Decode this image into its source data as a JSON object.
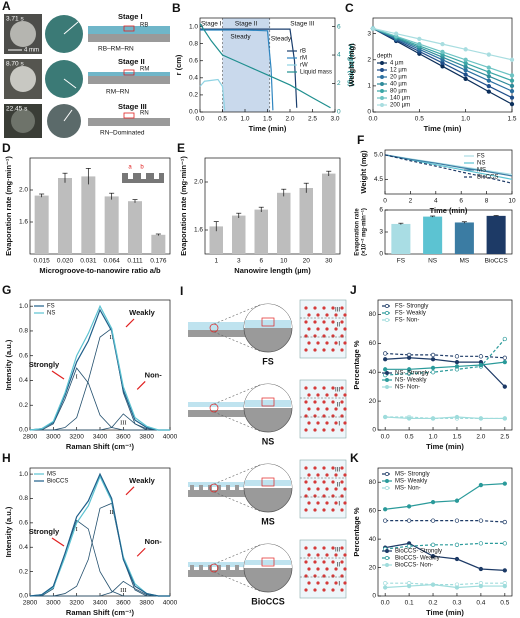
{
  "panel_a": {
    "label": "A",
    "scale": "4 mm",
    "frames": [
      {
        "time": "3.71 s",
        "stage": "Stage I",
        "radius": "RB",
        "regime": "RB–RM–RN"
      },
      {
        "time": "8.70 s",
        "stage": "Stage II",
        "radius": "RM",
        "regime": "RM–RN"
      },
      {
        "time": "22.45 s",
        "stage": "Stage III",
        "radius": "RN",
        "regime": "RN–Dominated"
      }
    ]
  },
  "panel_i": {
    "label": "I",
    "samples": [
      "FS",
      "NS",
      "MS",
      "BioCCS"
    ],
    "layers": [
      "III",
      "II",
      "I"
    ]
  },
  "chart_data": [
    {
      "type": "line",
      "label": "B",
      "xlabel": "Time (min)",
      "ylabel": "r (cm)",
      "y2label": "Weight (mg)",
      "xlim": [
        0,
        3
      ],
      "xticks": [
        {
          "value": 0,
          "label": "0.0"
        },
        0.5,
        {
          "value": 1,
          "label": "1.0"
        },
        1.5,
        {
          "value": 2,
          "label": "2.0"
        },
        2.5,
        {
          "value": 3,
          "label": "3.0"
        }
      ],
      "ylim": [
        0,
        1.1
      ],
      "yticks": [
        {
          "value": 0,
          "label": "0.0"
        },
        0.2,
        0.4,
        0.6,
        0.8,
        {
          "value": 1,
          "label": "1.0"
        }
      ],
      "y2lim": [
        0,
        6.6
      ],
      "y2ticks": [
        0,
        2,
        4,
        6
      ],
      "stages": [
        {
          "label": "Stage I",
          "from": 0,
          "to": 0.5,
          "fill": "#ffffff"
        },
        {
          "label": "Stage II",
          "from": 0.5,
          "to": 1.55,
          "fill": "#c9d9ec"
        },
        {
          "label": "Stage III",
          "from": 1.55,
          "to": 3,
          "fill": "#ffffff"
        }
      ],
      "annotations": [
        "Steady",
        "Steady"
      ],
      "legend": "center right",
      "series": [
        {
          "name": "rB",
          "color": "#1b3f6e",
          "x": [
            0,
            0.5,
            1.0,
            1.5,
            2.0,
            2.1,
            2.15
          ],
          "values": [
            0.97,
            0.97,
            0.97,
            0.97,
            0.97,
            0.6,
            0.05
          ]
        },
        {
          "name": "rM",
          "color": "#2f86c0",
          "x": [
            0,
            0.5,
            1.0,
            1.5,
            1.58,
            1.62
          ],
          "values": [
            0.96,
            0.96,
            0.96,
            0.95,
            0.5,
            0.02
          ]
        },
        {
          "name": "rW",
          "color": "#8fd3e3",
          "x": [
            0,
            0.1,
            0.4,
            0.5,
            0.55
          ],
          "values": [
            0.3,
            0.36,
            0.38,
            0.3,
            0.02
          ]
        },
        {
          "name": "Liquid mass",
          "color": "#1f8f8f",
          "axis": "y2",
          "x": [
            0,
            0.25,
            0.5,
            1.0,
            1.5,
            2.0,
            2.5,
            2.9
          ],
          "values": [
            6.2,
            5.0,
            4.0,
            3.3,
            2.6,
            1.9,
            1.0,
            0.3
          ]
        }
      ]
    },
    {
      "type": "line",
      "label": "C",
      "xlabel": "Time (min)",
      "ylabel": "Weight (mg)",
      "xlim": [
        0,
        1.5
      ],
      "xticks": [
        {
          "value": 0,
          "label": "0.0"
        },
        0.5,
        {
          "value": 1,
          "label": "1.0"
        },
        1.5
      ],
      "ylim": [
        0,
        3.6
      ],
      "yticks": [
        0,
        1,
        2,
        3
      ],
      "legend": "lower left",
      "legend_title": "depth",
      "x": [
        0,
        0.25,
        0.5,
        0.75,
        1.0,
        1.25,
        1.5
      ],
      "series": [
        {
          "name": "4 µm",
          "color": "#0b2e5a",
          "marker": "circle",
          "values": [
            3.2,
            2.72,
            2.23,
            1.75,
            1.27,
            0.78,
            0.3
          ]
        },
        {
          "name": "12 µm",
          "color": "#1f4e8a",
          "marker": "circle",
          "values": [
            3.2,
            2.76,
            2.32,
            1.88,
            1.43,
            0.99,
            0.55
          ]
        },
        {
          "name": "20 µm",
          "color": "#2b6fa0",
          "marker": "circle",
          "values": [
            3.2,
            2.8,
            2.4,
            2.0,
            1.6,
            1.2,
            0.8
          ]
        },
        {
          "name": "40 µm",
          "color": "#2f8a9a",
          "marker": "circle",
          "values": [
            3.2,
            2.83,
            2.47,
            2.1,
            1.73,
            1.37,
            1.0
          ]
        },
        {
          "name": "80 µm",
          "color": "#3ba6a6",
          "marker": "circle",
          "values": [
            3.2,
            2.87,
            2.53,
            2.2,
            1.87,
            1.53,
            1.2
          ]
        },
        {
          "name": "140 µm",
          "color": "#6cc3c3",
          "marker": "circle",
          "values": [
            3.2,
            2.9,
            2.6,
            2.3,
            2.0,
            1.7,
            1.4
          ]
        },
        {
          "name": "200 µm",
          "color": "#a8dde0",
          "marker": "circle",
          "values": [
            3.2,
            3.0,
            2.8,
            2.6,
            2.4,
            2.2,
            2.0
          ]
        }
      ]
    },
    {
      "type": "bar",
      "label": "D",
      "xlabel": "Microgroove-to-nanowire ratio a/b",
      "ylabel": "Evaporation rate (mg·min⁻¹)",
      "categories": [
        "0.015",
        "0.020",
        "0.031",
        "0.064",
        "0.111",
        "0.176"
      ],
      "values": [
        1.93,
        2.15,
        2.17,
        1.92,
        1.86,
        1.44
      ],
      "errors": [
        0.02,
        0.06,
        0.1,
        0.04,
        0.02,
        0.01
      ],
      "color": "#bdbdbd",
      "ylim": [
        1.2,
        2.4
      ],
      "yticks": [
        1.6,
        {
          "value": 2,
          "label": "2.0"
        }
      ],
      "inset_labels": [
        "a",
        "b"
      ]
    },
    {
      "type": "bar",
      "label": "E",
      "xlabel": "Nanowire length (µm)",
      "ylabel": "Evaporation rate (mg·min⁻¹)",
      "categories": [
        "1",
        "3",
        "6",
        "10",
        "20",
        "30"
      ],
      "values": [
        1.63,
        1.72,
        1.77,
        1.91,
        1.95,
        2.07
      ],
      "errors": [
        0.04,
        0.02,
        0.02,
        0.03,
        0.04,
        0.02
      ],
      "color": "#bdbdbd",
      "ylim": [
        1.4,
        2.2
      ],
      "yticks": [
        1.6,
        {
          "value": 2,
          "label": "2.0"
        }
      ]
    },
    {
      "type": "line",
      "label": "F",
      "xlabel": "Time (min)",
      "ylabel": "Weight (mg)",
      "xlim": [
        0,
        10
      ],
      "xticks": [
        0,
        2,
        4,
        6,
        8,
        10
      ],
      "ylim": [
        4.2,
        5.1
      ],
      "yticks": [
        4.5,
        {
          "value": 5,
          "label": "5.0"
        }
      ],
      "legend": "upper right",
      "x": [
        0,
        2,
        4,
        6,
        8,
        10
      ],
      "series": [
        {
          "name": "FS",
          "color": "#a9dde4",
          "values": [
            5.0,
            4.92,
            4.84,
            4.76,
            4.68,
            4.6
          ]
        },
        {
          "name": "NS",
          "color": "#5cc3d2",
          "values": [
            5.0,
            4.9,
            4.8,
            4.7,
            4.6,
            4.5
          ]
        },
        {
          "name": "MS",
          "color": "#3b7ca3",
          "values": [
            5.0,
            4.91,
            4.83,
            4.74,
            4.66,
            4.57
          ]
        },
        {
          "name": "BioCCS",
          "color": "#1d3a66",
          "dash": "dashed",
          "values": [
            5.0,
            4.88,
            4.77,
            4.65,
            4.54,
            4.42
          ]
        }
      ]
    },
    {
      "type": "bar",
      "ylabel": [
        "Evaporation rate",
        "(×10⁻² mg·min⁻¹)"
      ],
      "categories": [
        "FS",
        "NS",
        "MS",
        "BioCCS"
      ],
      "values": [
        4.1,
        5.1,
        4.3,
        5.2
      ],
      "errors": [
        0.1,
        0.08,
        0.1,
        0.05
      ],
      "colors": [
        "#a9dde4",
        "#5cc3d2",
        "#3b7ca3",
        "#1d3a66"
      ],
      "ylim": [
        0,
        6
      ],
      "yticks": [
        0,
        3,
        6
      ]
    },
    {
      "type": "line",
      "label": "G",
      "xlabel": "Raman Shift (cm⁻¹)",
      "ylabel": "Intensity (a.u.)",
      "xlim": [
        2800,
        4000
      ],
      "xticks": [
        2800,
        3000,
        3200,
        3400,
        3600,
        3800,
        4000
      ],
      "ylim": [
        0,
        1.05
      ],
      "yticks": [
        {
          "value": 0,
          "label": "0.0"
        },
        0.2,
        0.4,
        0.6,
        0.8,
        {
          "value": 1,
          "label": "1.0"
        }
      ],
      "legend": "upper left",
      "annotations": [
        "Strongly",
        "Weakly",
        "Non-"
      ],
      "x": [
        2800,
        2900,
        3000,
        3100,
        3200,
        3300,
        3400,
        3500,
        3600,
        3700,
        3800,
        3900,
        4000
      ],
      "series": [
        {
          "name": "FS",
          "color": "#1f5f8a",
          "values": [
            0,
            0.01,
            0.06,
            0.28,
            0.55,
            0.72,
            0.97,
            0.8,
            0.32,
            0.08,
            0.02,
            0,
            0
          ]
        },
        {
          "name": "NS",
          "color": "#5cc3d2",
          "values": [
            0,
            0.01,
            0.07,
            0.3,
            0.6,
            0.78,
            1.0,
            0.82,
            0.35,
            0.1,
            0.03,
            0,
            0
          ]
        }
      ],
      "components": [
        {
          "label": "I",
          "values": [
            0,
            0,
            0.05,
            0.25,
            0.5,
            0.38,
            0.12,
            0.02,
            0,
            0,
            0,
            0,
            0
          ]
        },
        {
          "label": "II",
          "values": [
            0,
            0,
            0,
            0.02,
            0.1,
            0.4,
            0.75,
            0.82,
            0.3,
            0.05,
            0,
            0,
            0
          ]
        },
        {
          "label": "III",
          "values": [
            0,
            0,
            0,
            0,
            0,
            0,
            0,
            0.02,
            0.13,
            0.05,
            0.01,
            0,
            0
          ]
        }
      ]
    },
    {
      "type": "line",
      "label": "H",
      "xlabel": "Raman Shift (cm⁻¹)",
      "ylabel": "Intensity (a.u.)",
      "xlim": [
        2800,
        4000
      ],
      "xticks": [
        2800,
        3000,
        3200,
        3400,
        3600,
        3800,
        4000
      ],
      "ylim": [
        0,
        1.05
      ],
      "yticks": [
        {
          "value": 0,
          "label": "0.0"
        },
        0.2,
        0.4,
        0.6,
        0.8,
        {
          "value": 1,
          "label": "1.0"
        }
      ],
      "legend": "upper left",
      "annotations": [
        "Strongly",
        "Weakly",
        "Non-"
      ],
      "x": [
        2800,
        2900,
        3000,
        3100,
        3200,
        3300,
        3400,
        3500,
        3600,
        3700,
        3800,
        3900,
        4000
      ],
      "series": [
        {
          "name": "MS",
          "color": "#5cc3d2",
          "values": [
            0,
            0.01,
            0.07,
            0.32,
            0.6,
            0.74,
            0.98,
            0.78,
            0.32,
            0.1,
            0.02,
            0,
            0
          ]
        },
        {
          "name": "BioCCS",
          "color": "#1f5f8a",
          "values": [
            0,
            0.01,
            0.08,
            0.35,
            0.65,
            0.78,
            1.0,
            0.8,
            0.3,
            0.08,
            0.02,
            0,
            0
          ]
        }
      ],
      "components": [
        {
          "label": "I",
          "values": [
            0,
            0,
            0.06,
            0.35,
            0.62,
            0.55,
            0.2,
            0.04,
            0,
            0,
            0,
            0,
            0
          ]
        },
        {
          "label": "II",
          "values": [
            0,
            0,
            0,
            0.02,
            0.08,
            0.3,
            0.72,
            0.76,
            0.3,
            0.05,
            0,
            0,
            0
          ]
        },
        {
          "label": "III",
          "values": [
            0,
            0,
            0,
            0,
            0,
            0,
            0,
            0.03,
            0.12,
            0.06,
            0.01,
            0,
            0
          ]
        }
      ]
    },
    {
      "type": "line",
      "label": "J",
      "xlabel": "Time (min)",
      "ylabel": "Percentage %",
      "xlim": [
        -0.15,
        2.65
      ],
      "xticks": [
        {
          "value": 0,
          "label": "0.0"
        },
        0.5,
        {
          "value": 1,
          "label": "1.0"
        },
        1.5,
        {
          "value": 2,
          "label": "2.0"
        },
        2.5
      ],
      "ylim": [
        0,
        90
      ],
      "yticks": [
        0,
        20,
        40,
        60,
        80
      ],
      "legend": "upper left",
      "x": [
        0,
        0.5,
        1.0,
        1.5,
        2.0,
        2.5
      ],
      "series": [
        {
          "name": "FS- Strongly",
          "color": "#1d3a66",
          "dash": "dashed",
          "marker": "open",
          "values": [
            53,
            52,
            52,
            51,
            51,
            50
          ]
        },
        {
          "name": "FS- Weakly",
          "color": "#2a9a9a",
          "dash": "dashed",
          "marker": "open",
          "values": [
            38,
            39,
            40,
            42,
            44,
            63
          ]
        },
        {
          "name": "FS- Non-",
          "color": "#9fdcdc",
          "dash": "dashed",
          "marker": "open",
          "values": [
            9,
            9,
            8,
            8,
            8,
            8
          ]
        },
        {
          "name": "NS- Strongly",
          "color": "#1d3a66",
          "marker": "circle",
          "values": [
            49,
            50,
            49,
            47,
            47,
            30
          ]
        },
        {
          "name": "NS- Weakly",
          "color": "#2a9a9a",
          "marker": "circle",
          "values": [
            42,
            42,
            43,
            44,
            45,
            47
          ]
        },
        {
          "name": "NS- Non-",
          "color": "#9fdcdc",
          "marker": "circle",
          "values": [
            9,
            8,
            8,
            9,
            8,
            8
          ]
        }
      ]
    },
    {
      "type": "line",
      "label": "K",
      "xlabel": "Time (min)",
      "ylabel": "Percentage %",
      "xlim": [
        -0.03,
        0.53
      ],
      "xticks": [
        {
          "value": 0,
          "label": "0.0"
        },
        0.1,
        0.2,
        0.3,
        0.4,
        0.5
      ],
      "ylim": [
        0,
        90
      ],
      "yticks": [
        0,
        20,
        40,
        60,
        80
      ],
      "legend": "upper left",
      "x": [
        0,
        0.1,
        0.2,
        0.3,
        0.4,
        0.5
      ],
      "series": [
        {
          "name": "MS- Strongly",
          "color": "#1d3a66",
          "dash": "dashed",
          "marker": "open",
          "values": [
            53,
            53,
            53,
            53,
            53,
            52
          ]
        },
        {
          "name": "MS- Weakly",
          "color": "#2a9a9a",
          "marker": "circle",
          "values": [
            61,
            63,
            66,
            67,
            78,
            79
          ]
        },
        {
          "name": "MS- Non-",
          "color": "#9fdcdc",
          "dash": "dashed",
          "marker": "open",
          "values": [
            9,
            9,
            8,
            8,
            9,
            9
          ]
        },
        {
          "name": "BioCCS- Strongly",
          "color": "#1d3a66",
          "marker": "circle",
          "values": [
            34,
            37,
            28,
            26,
            19,
            18
          ]
        },
        {
          "name": "BioCCS- Weakly",
          "color": "#2a9a9a",
          "dash": "dashed",
          "marker": "open",
          "values": [
            33,
            35,
            36,
            36,
            37,
            37
          ]
        },
        {
          "name": "BioCCS- Non-",
          "color": "#9fdcdc",
          "marker": "circle",
          "values": [
            6,
            7,
            8,
            6,
            7,
            7
          ]
        }
      ]
    }
  ]
}
